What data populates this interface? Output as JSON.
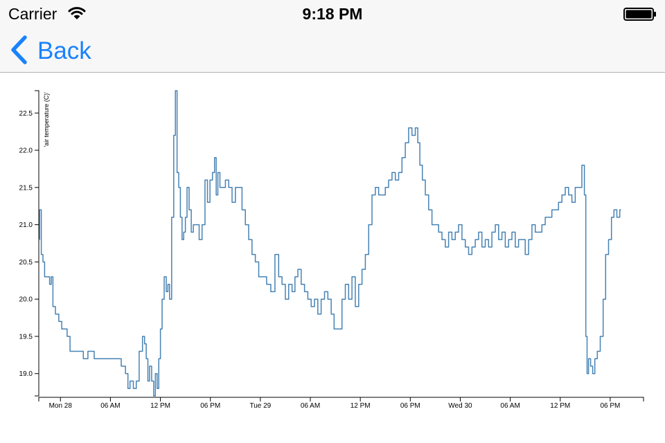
{
  "status_bar": {
    "carrier": "Carrier",
    "time": "9:18 PM"
  },
  "nav": {
    "back_label": "Back"
  },
  "colors": {
    "accent": "#1a82fb",
    "line": "#4682b4",
    "nav_bg": "#f7f7f7"
  },
  "chart_data": {
    "type": "line",
    "ylabel": "'air temperature (C)'",
    "xlabel": "",
    "ylim": [
      18.7,
      22.8
    ],
    "x_unit": "hours from Mon 28 00:00",
    "xlim": [
      -2.6,
      70
    ],
    "yticks": [
      19.0,
      19.5,
      20.0,
      20.5,
      21.0,
      21.5,
      22.0,
      22.5
    ],
    "xticks": [
      {
        "t": 0,
        "label": "Mon 28"
      },
      {
        "t": 6,
        "label": "06 AM"
      },
      {
        "t": 12,
        "label": "12 PM"
      },
      {
        "t": 18,
        "label": "06 PM"
      },
      {
        "t": 24,
        "label": "Tue 29"
      },
      {
        "t": 30,
        "label": "06 AM"
      },
      {
        "t": 36,
        "label": "12 PM"
      },
      {
        "t": 42,
        "label": "06 PM"
      },
      {
        "t": 48,
        "label": "Wed 30"
      },
      {
        "t": 54,
        "label": "06 AM"
      },
      {
        "t": 60,
        "label": "12 PM"
      },
      {
        "t": 66,
        "label": "06 PM"
      }
    ],
    "grid": false,
    "series": [
      {
        "points": [
          [
            -2.6,
            20.8
          ],
          [
            -2.4,
            21.2
          ],
          [
            -2.2,
            20.6
          ],
          [
            -2.0,
            20.5
          ],
          [
            -1.8,
            20.3
          ],
          [
            -1.4,
            20.3
          ],
          [
            -1.2,
            20.2
          ],
          [
            -1.0,
            20.3
          ],
          [
            -0.8,
            19.9
          ],
          [
            -0.4,
            19.8
          ],
          [
            0.0,
            19.7
          ],
          [
            0.3,
            19.6
          ],
          [
            0.6,
            19.6
          ],
          [
            1.0,
            19.5
          ],
          [
            1.3,
            19.3
          ],
          [
            2.5,
            19.3
          ],
          [
            3.0,
            19.2
          ],
          [
            3.6,
            19.3
          ],
          [
            4.5,
            19.2
          ],
          [
            5.5,
            19.2
          ],
          [
            6.3,
            19.2
          ],
          [
            7.0,
            19.2
          ],
          [
            7.6,
            19.1
          ],
          [
            8.0,
            19.0
          ],
          [
            8.2,
            18.8
          ],
          [
            8.5,
            18.9
          ],
          [
            9.0,
            18.8
          ],
          [
            9.2,
            18.9
          ],
          [
            9.7,
            19.3
          ],
          [
            10.0,
            19.5
          ],
          [
            10.2,
            19.4
          ],
          [
            10.4,
            19.2
          ],
          [
            10.6,
            18.9
          ],
          [
            10.8,
            19.1
          ],
          [
            11.1,
            18.9
          ],
          [
            11.3,
            18.7
          ],
          [
            11.5,
            19.0
          ],
          [
            11.7,
            18.8
          ],
          [
            11.9,
            19.2
          ],
          [
            12.1,
            19.6
          ],
          [
            12.3,
            20.0
          ],
          [
            12.6,
            20.3
          ],
          [
            12.8,
            20.1
          ],
          [
            13.0,
            20.2
          ],
          [
            13.2,
            20.0
          ],
          [
            13.5,
            21.1
          ],
          [
            13.7,
            22.2
          ],
          [
            13.9,
            22.8
          ],
          [
            14.1,
            21.7
          ],
          [
            14.3,
            21.5
          ],
          [
            14.5,
            21.1
          ],
          [
            14.7,
            20.8
          ],
          [
            14.9,
            20.9
          ],
          [
            15.1,
            21.1
          ],
          [
            15.3,
            21.5
          ],
          [
            15.6,
            21.2
          ],
          [
            15.8,
            20.9
          ],
          [
            16.1,
            21.0
          ],
          [
            16.5,
            21.0
          ],
          [
            16.8,
            20.8
          ],
          [
            17.2,
            21.0
          ],
          [
            17.5,
            21.6
          ],
          [
            17.8,
            21.3
          ],
          [
            18.1,
            21.6
          ],
          [
            18.4,
            21.7
          ],
          [
            18.6,
            21.9
          ],
          [
            18.8,
            21.4
          ],
          [
            19.0,
            21.7
          ],
          [
            19.3,
            21.5
          ],
          [
            19.6,
            21.5
          ],
          [
            20.0,
            21.6
          ],
          [
            20.4,
            21.5
          ],
          [
            20.8,
            21.3
          ],
          [
            21.2,
            21.5
          ],
          [
            21.6,
            21.5
          ],
          [
            22.0,
            21.2
          ],
          [
            22.4,
            21.0
          ],
          [
            22.8,
            20.8
          ],
          [
            23.2,
            20.6
          ],
          [
            23.6,
            20.5
          ],
          [
            24.0,
            20.3
          ],
          [
            24.5,
            20.3
          ],
          [
            25.0,
            20.2
          ],
          [
            25.5,
            20.1
          ],
          [
            26.0,
            20.6
          ],
          [
            26.4,
            20.3
          ],
          [
            26.8,
            20.2
          ],
          [
            27.2,
            20.0
          ],
          [
            27.6,
            20.2
          ],
          [
            28.0,
            20.1
          ],
          [
            28.3,
            20.3
          ],
          [
            28.7,
            20.4
          ],
          [
            29.1,
            20.2
          ],
          [
            29.5,
            20.1
          ],
          [
            29.9,
            20.0
          ],
          [
            30.3,
            19.9
          ],
          [
            30.7,
            20.0
          ],
          [
            31.1,
            19.8
          ],
          [
            31.5,
            20.0
          ],
          [
            31.9,
            20.1
          ],
          [
            32.3,
            20.0
          ],
          [
            32.7,
            19.8
          ],
          [
            33.0,
            19.6
          ],
          [
            33.6,
            19.6
          ],
          [
            34.0,
            20.0
          ],
          [
            34.4,
            20.2
          ],
          [
            34.8,
            20.0
          ],
          [
            35.2,
            20.3
          ],
          [
            35.6,
            19.9
          ],
          [
            36.0,
            20.2
          ],
          [
            36.4,
            20.4
          ],
          [
            36.8,
            20.6
          ],
          [
            37.2,
            21.0
          ],
          [
            37.6,
            21.4
          ],
          [
            38.0,
            21.5
          ],
          [
            38.4,
            21.4
          ],
          [
            38.8,
            21.4
          ],
          [
            39.2,
            21.5
          ],
          [
            39.6,
            21.6
          ],
          [
            40.0,
            21.7
          ],
          [
            40.4,
            21.6
          ],
          [
            40.8,
            21.7
          ],
          [
            41.2,
            21.9
          ],
          [
            41.6,
            22.1
          ],
          [
            42.0,
            22.3
          ],
          [
            42.4,
            22.2
          ],
          [
            42.8,
            22.3
          ],
          [
            43.0,
            22.1
          ],
          [
            43.3,
            21.8
          ],
          [
            43.6,
            21.6
          ],
          [
            44.0,
            21.4
          ],
          [
            44.4,
            21.2
          ],
          [
            44.8,
            21.0
          ],
          [
            45.2,
            21.0
          ],
          [
            45.6,
            20.9
          ],
          [
            46.0,
            20.8
          ],
          [
            46.4,
            20.7
          ],
          [
            46.8,
            20.9
          ],
          [
            47.2,
            20.8
          ],
          [
            47.6,
            20.9
          ],
          [
            48.0,
            21.0
          ],
          [
            48.4,
            20.8
          ],
          [
            48.8,
            20.7
          ],
          [
            49.2,
            20.6
          ],
          [
            49.6,
            20.7
          ],
          [
            50.0,
            20.8
          ],
          [
            50.4,
            20.9
          ],
          [
            50.8,
            20.7
          ],
          [
            51.2,
            20.8
          ],
          [
            51.6,
            20.7
          ],
          [
            52.0,
            20.9
          ],
          [
            52.4,
            21.0
          ],
          [
            52.8,
            20.8
          ],
          [
            53.2,
            20.9
          ],
          [
            53.6,
            20.7
          ],
          [
            54.0,
            20.8
          ],
          [
            54.4,
            20.9
          ],
          [
            54.8,
            20.7
          ],
          [
            55.2,
            20.8
          ],
          [
            55.6,
            20.8
          ],
          [
            56.0,
            20.6
          ],
          [
            56.4,
            20.8
          ],
          [
            56.8,
            21.0
          ],
          [
            57.2,
            20.9
          ],
          [
            57.6,
            20.9
          ],
          [
            58.0,
            21.0
          ],
          [
            58.4,
            21.1
          ],
          [
            58.8,
            21.1
          ],
          [
            59.2,
            21.2
          ],
          [
            59.6,
            21.2
          ],
          [
            60.0,
            21.3
          ],
          [
            60.4,
            21.4
          ],
          [
            60.8,
            21.5
          ],
          [
            61.2,
            21.4
          ],
          [
            61.6,
            21.3
          ],
          [
            62.0,
            21.5
          ],
          [
            62.4,
            21.5
          ],
          [
            62.8,
            21.8
          ],
          [
            63.0,
            21.4
          ],
          [
            63.15,
            19.5
          ],
          [
            63.3,
            19.0
          ],
          [
            63.5,
            19.2
          ],
          [
            63.8,
            19.1
          ],
          [
            64.0,
            19.0
          ],
          [
            64.3,
            19.2
          ],
          [
            64.6,
            19.3
          ],
          [
            65.0,
            19.5
          ],
          [
            65.3,
            20.0
          ],
          [
            65.6,
            20.6
          ],
          [
            66.0,
            20.8
          ],
          [
            66.3,
            21.1
          ],
          [
            66.6,
            21.2
          ],
          [
            67.0,
            21.1
          ],
          [
            67.3,
            21.2
          ]
        ]
      }
    ]
  }
}
